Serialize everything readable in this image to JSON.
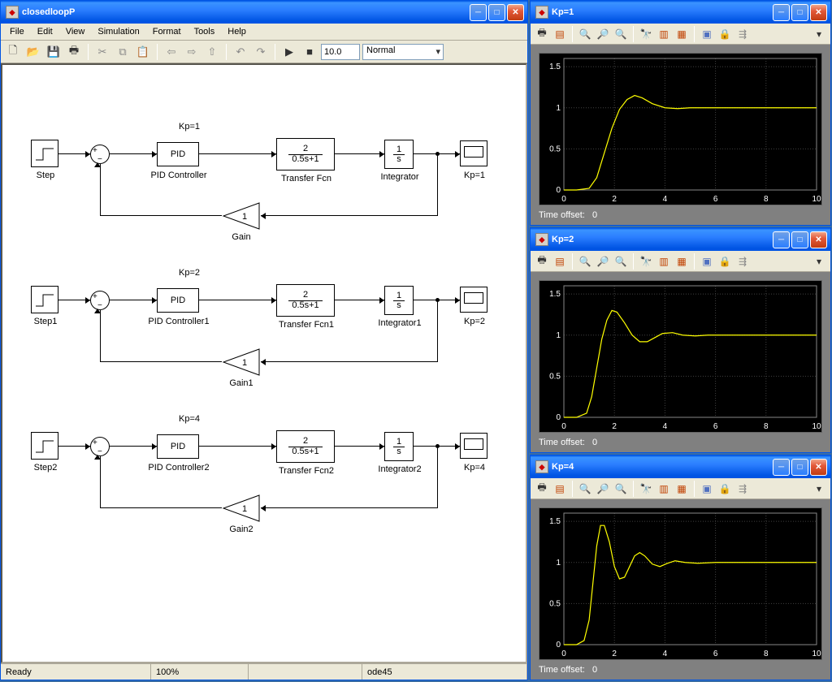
{
  "main": {
    "title": "closedloopP",
    "menus": [
      "File",
      "Edit",
      "View",
      "Simulation",
      "Format",
      "Tools",
      "Help"
    ],
    "stopTime": "10.0",
    "mode": "Normal",
    "status": {
      "ready": "Ready",
      "zoom": "100%",
      "solver": "ode45"
    },
    "loops": [
      {
        "kp_label": "Kp=1",
        "step": "Step",
        "pid": "PID",
        "pidName": "PID Controller",
        "tf_num": "2",
        "tf_den": "0.5s+1",
        "tfName": "Transfer Fcn",
        "int_num": "1",
        "int_den": "s",
        "intName": "Integrator",
        "scopeName": "Kp=1",
        "gain": "1",
        "gainName": "Gain"
      },
      {
        "kp_label": "Kp=2",
        "step": "Step1",
        "pid": "PID",
        "pidName": "PID Controller1",
        "tf_num": "2",
        "tf_den": "0.5s+1",
        "tfName": "Transfer Fcn1",
        "int_num": "1",
        "int_den": "s",
        "intName": "Integrator1",
        "scopeName": "Kp=2",
        "gain": "1",
        "gainName": "Gain1"
      },
      {
        "kp_label": "Kp=4",
        "step": "Step2",
        "pid": "PID",
        "pidName": "PID Controller2",
        "tf_num": "2",
        "tf_den": "0.5s+1",
        "tfName": "Transfer Fcn2",
        "int_num": "1",
        "int_den": "s",
        "intName": "Integrator2",
        "scopeName": "Kp=4",
        "gain": "1",
        "gainName": "Gain2"
      }
    ]
  },
  "scopes": [
    {
      "title": "Kp=1",
      "time_offset_label": "Time offset:",
      "time_offset_value": "0",
      "chart": {
        "type": "line",
        "xlim": [
          0,
          10
        ],
        "ylim": [
          0,
          1.6
        ],
        "xticks": [
          0,
          2,
          4,
          6,
          8,
          10
        ],
        "yticks": [
          0,
          0.5,
          1,
          1.5
        ],
        "line_color": "#ffff00",
        "bg": "#000000",
        "grid_color": "#404040",
        "tick_color": "#ffffff",
        "tick_fontsize": 10,
        "data": [
          [
            0,
            0
          ],
          [
            0.5,
            0
          ],
          [
            1,
            0.02
          ],
          [
            1.3,
            0.15
          ],
          [
            1.6,
            0.45
          ],
          [
            1.9,
            0.75
          ],
          [
            2.2,
            0.98
          ],
          [
            2.5,
            1.1
          ],
          [
            2.8,
            1.15
          ],
          [
            3.1,
            1.12
          ],
          [
            3.5,
            1.05
          ],
          [
            4,
            1.0
          ],
          [
            4.5,
            0.99
          ],
          [
            5,
            1.0
          ],
          [
            6,
            1.0
          ],
          [
            7,
            1.0
          ],
          [
            8,
            1.0
          ],
          [
            9,
            1.0
          ],
          [
            10,
            1.0
          ]
        ]
      }
    },
    {
      "title": "Kp=2",
      "time_offset_label": "Time offset:",
      "time_offset_value": "0",
      "chart": {
        "type": "line",
        "xlim": [
          0,
          10
        ],
        "ylim": [
          0,
          1.6
        ],
        "xticks": [
          0,
          2,
          4,
          6,
          8,
          10
        ],
        "yticks": [
          0,
          0.5,
          1,
          1.5
        ],
        "line_color": "#ffff00",
        "bg": "#000000",
        "grid_color": "#404040",
        "tick_color": "#ffffff",
        "tick_fontsize": 10,
        "data": [
          [
            0,
            0
          ],
          [
            0.5,
            0
          ],
          [
            0.9,
            0.05
          ],
          [
            1.1,
            0.25
          ],
          [
            1.3,
            0.6
          ],
          [
            1.5,
            0.95
          ],
          [
            1.7,
            1.18
          ],
          [
            1.9,
            1.3
          ],
          [
            2.1,
            1.28
          ],
          [
            2.4,
            1.15
          ],
          [
            2.7,
            1.0
          ],
          [
            3.0,
            0.92
          ],
          [
            3.3,
            0.92
          ],
          [
            3.6,
            0.97
          ],
          [
            3.9,
            1.02
          ],
          [
            4.3,
            1.03
          ],
          [
            4.7,
            1.0
          ],
          [
            5.2,
            0.99
          ],
          [
            5.7,
            1.0
          ],
          [
            7,
            1.0
          ],
          [
            8,
            1.0
          ],
          [
            9,
            1.0
          ],
          [
            10,
            1.0
          ]
        ]
      }
    },
    {
      "title": "Kp=4",
      "time_offset_label": "Time offset:",
      "time_offset_value": "0",
      "chart": {
        "type": "line",
        "xlim": [
          0,
          10
        ],
        "ylim": [
          0,
          1.6
        ],
        "xticks": [
          0,
          2,
          4,
          6,
          8,
          10
        ],
        "yticks": [
          0,
          0.5,
          1,
          1.5
        ],
        "line_color": "#ffff00",
        "bg": "#000000",
        "grid_color": "#404040",
        "tick_color": "#ffffff",
        "tick_fontsize": 10,
        "data": [
          [
            0,
            0
          ],
          [
            0.5,
            0
          ],
          [
            0.8,
            0.05
          ],
          [
            1.0,
            0.3
          ],
          [
            1.15,
            0.75
          ],
          [
            1.3,
            1.2
          ],
          [
            1.45,
            1.45
          ],
          [
            1.6,
            1.45
          ],
          [
            1.8,
            1.25
          ],
          [
            2.0,
            0.95
          ],
          [
            2.2,
            0.8
          ],
          [
            2.4,
            0.82
          ],
          [
            2.6,
            0.95
          ],
          [
            2.8,
            1.08
          ],
          [
            3.0,
            1.12
          ],
          [
            3.2,
            1.08
          ],
          [
            3.5,
            0.98
          ],
          [
            3.8,
            0.95
          ],
          [
            4.1,
            0.99
          ],
          [
            4.4,
            1.02
          ],
          [
            4.8,
            1.0
          ],
          [
            5.3,
            0.99
          ],
          [
            6,
            1.0
          ],
          [
            7,
            1.0
          ],
          [
            8,
            1.0
          ],
          [
            9,
            1.0
          ],
          [
            10,
            1.0
          ]
        ]
      }
    }
  ]
}
